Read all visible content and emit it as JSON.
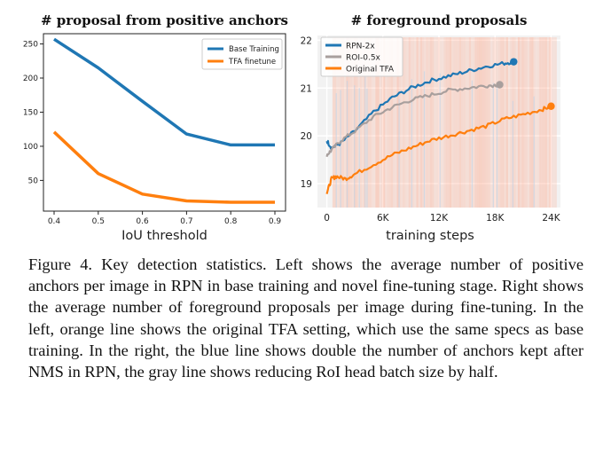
{
  "chart_data": [
    {
      "type": "line",
      "title": "# proposal from positive anchors",
      "xlabel": "IoU threshold",
      "ylabel": "",
      "x": [
        0.4,
        0.5,
        0.6,
        0.7,
        0.8,
        0.9
      ],
      "xticks": [
        "0.4",
        "0.5",
        "0.6",
        "0.7",
        "0.8",
        "0.9"
      ],
      "xlim": [
        0.4,
        0.9
      ],
      "yticks": [
        "50",
        "100",
        "150",
        "200",
        "250"
      ],
      "ylim": [
        5,
        265
      ],
      "grid": false,
      "legend": "top-right",
      "series": [
        {
          "name": "Base Training",
          "color": "#1f77b4",
          "values": [
            257,
            215,
            166,
            118,
            102,
            102
          ]
        },
        {
          "name": "TFA finetune",
          "color": "#ff7f0e",
          "values": [
            121,
            60,
            30,
            20,
            18,
            18
          ]
        }
      ]
    },
    {
      "type": "line",
      "title": "# foreground proposals",
      "xlabel": "training steps",
      "ylabel": "",
      "xticks": [
        "0",
        "6K",
        "12K",
        "18K",
        "24K"
      ],
      "xlim": [
        -1000,
        25000
      ],
      "yticks": [
        "19",
        "20",
        "21",
        "22"
      ],
      "ylim": [
        18.5,
        22.1
      ],
      "grid": true,
      "legend": "top-left",
      "series": [
        {
          "name": "RPN-2x",
          "color": "#1f77b4",
          "x": [
            0,
            500,
            1500,
            3000,
            5000,
            7000,
            9000,
            11000,
            13000,
            15000,
            17000,
            19000,
            20000
          ],
          "values": [
            19.9,
            19.75,
            19.85,
            20.1,
            20.5,
            20.8,
            21.0,
            21.15,
            21.25,
            21.35,
            21.45,
            21.52,
            21.55
          ]
        },
        {
          "name": "ROI-0.5x",
          "color": "#a89f9d",
          "x": [
            0,
            500,
            1500,
            3000,
            5000,
            7000,
            9000,
            11000,
            13000,
            15000,
            17000,
            18500
          ],
          "values": [
            19.6,
            19.7,
            19.9,
            20.1,
            20.4,
            20.6,
            20.75,
            20.85,
            20.95,
            21.0,
            21.05,
            21.07
          ]
        },
        {
          "name": "Original TFA",
          "color": "#ff7f0e",
          "x": [
            0,
            500,
            1000,
            2000,
            3000,
            5000,
            7000,
            9000,
            11000,
            13000,
            15000,
            17000,
            19000,
            21000,
            23000,
            24000
          ],
          "values": [
            18.8,
            19.1,
            19.15,
            19.1,
            19.2,
            19.4,
            19.6,
            19.75,
            19.9,
            20.0,
            20.1,
            20.2,
            20.35,
            20.45,
            20.55,
            20.62
          ]
        }
      ]
    }
  ],
  "caption": "Figure 4. Key detection statistics. Left shows the average number of positive anchors per image in RPN in base training and novel fine-tuning stage. Right shows the average number of foreground proposals per image during fine-tuning. In the left, orange line shows the original TFA setting, which use the same specs as base training. In the right, the blue line shows double the number of anchors kept after NMS in RPN, the gray line shows reducing RoI head batch size by half."
}
